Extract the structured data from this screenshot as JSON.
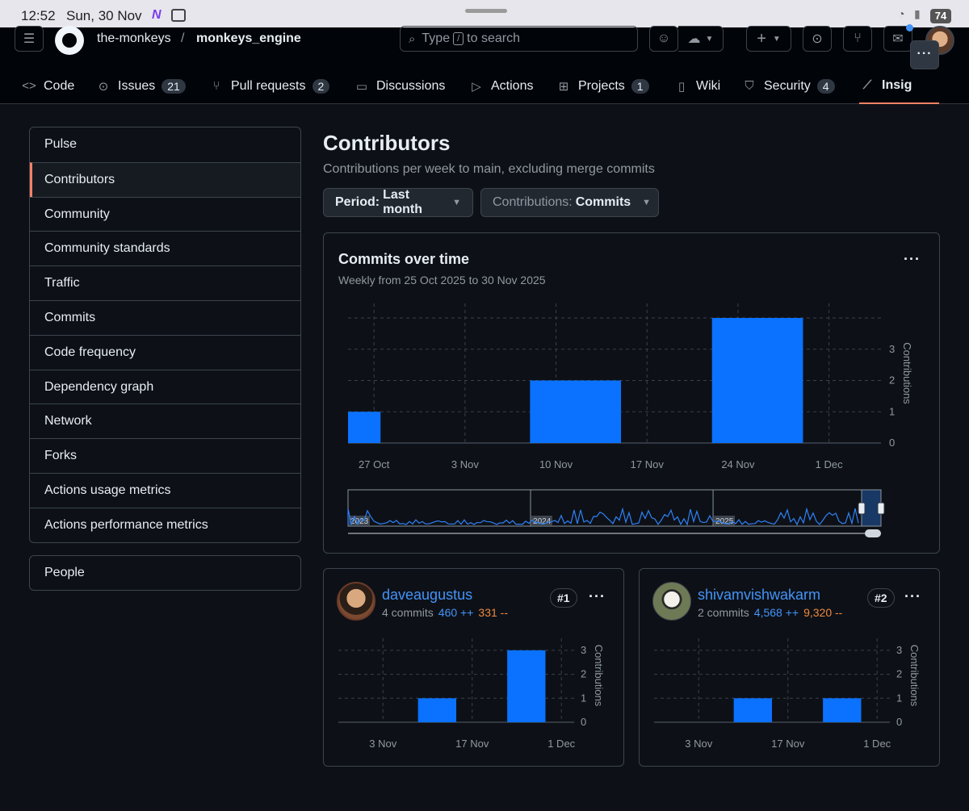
{
  "status_bar": {
    "time": "12:52",
    "date": "Sun, 30 Nov",
    "battery": "74"
  },
  "header": {
    "owner": "the-monkeys",
    "separator": "/",
    "repo": "monkeys_engine",
    "search_placeholder_pre": "Type",
    "search_kbd": "/",
    "search_placeholder_post": "to search"
  },
  "tabs": [
    {
      "label": "Code",
      "icon": "code-icon"
    },
    {
      "label": "Issues",
      "count": "21",
      "icon": "issue-icon"
    },
    {
      "label": "Pull requests",
      "count": "2",
      "icon": "pull-request-icon"
    },
    {
      "label": "Discussions",
      "icon": "discussion-icon"
    },
    {
      "label": "Actions",
      "icon": "play-icon"
    },
    {
      "label": "Projects",
      "count": "1",
      "icon": "table-icon"
    },
    {
      "label": "Wiki",
      "icon": "book-icon"
    },
    {
      "label": "Security",
      "count": "4",
      "icon": "shield-icon"
    },
    {
      "label": "Insig",
      "icon": "graph-icon"
    }
  ],
  "sidebar": {
    "items": [
      "Pulse",
      "Contributors",
      "Community",
      "Community standards",
      "Traffic",
      "Commits",
      "Code frequency",
      "Dependency graph",
      "Network",
      "Forks",
      "Actions usage metrics",
      "Actions performance metrics"
    ],
    "selected": "Contributors",
    "people": "People"
  },
  "main": {
    "title": "Contributors",
    "subtitle": "Contributions per week to main, excluding merge commits",
    "period": {
      "label": "Period:",
      "value": "Last month"
    },
    "contributions": {
      "label": "Contributions:",
      "value": "Commits"
    }
  },
  "overview": {
    "title": "Commits over time",
    "subtitle": "Weekly from 25 Oct 2025 to 30 Nov 2025",
    "axis_label": "Contributions",
    "yticks": [
      "0",
      "1",
      "2",
      "3"
    ],
    "xticks": [
      "27 Oct",
      "3 Nov",
      "10 Nov",
      "17 Nov",
      "24 Nov",
      "1 Dec"
    ],
    "navigator_years": [
      "2023",
      "2024",
      "2025"
    ]
  },
  "contributors": [
    {
      "name": "daveaugustus",
      "commits": "4 commits",
      "additions": "460 ++",
      "deletions": "331 --",
      "rank": "#1"
    },
    {
      "name": "shivamvishwakarm",
      "commits": "2 commits",
      "additions": "4,568 ++",
      "deletions": "9,320 --",
      "rank": "#2"
    }
  ],
  "mini_axes": {
    "axis_label": "Contributions",
    "yticks": [
      "0",
      "1",
      "2",
      "3"
    ],
    "xticks": [
      "3 Nov",
      "17 Nov",
      "1 Dec"
    ]
  },
  "chart_data": [
    {
      "type": "bar",
      "title": "Commits over time",
      "subtitle": "Weekly from 25 Oct 2025 to 30 Nov 2025",
      "ylabel": "Contributions",
      "x": [
        "2025-10-25",
        "2025-11-08",
        "2025-11-22"
      ],
      "values": [
        1,
        2,
        4
      ],
      "xticks": [
        "27 Oct",
        "3 Nov",
        "10 Nov",
        "17 Nov",
        "24 Nov",
        "1 Dec"
      ],
      "ylim": [
        0,
        4
      ],
      "grid": true
    },
    {
      "type": "bar",
      "title": "",
      "series": [
        {
          "name": "daveaugustus",
          "x": [
            "2025-11-08",
            "2025-11-22"
          ],
          "values": [
            1,
            3
          ]
        }
      ],
      "ylabel": "Contributions",
      "xticks": [
        "3 Nov",
        "17 Nov",
        "1 Dec"
      ],
      "ylim": [
        0,
        3.5
      ],
      "grid": true
    },
    {
      "type": "bar",
      "title": "",
      "series": [
        {
          "name": "shivamvishwakarm",
          "x": [
            "2025-11-08",
            "2025-11-22"
          ],
          "values": [
            1,
            1
          ]
        }
      ],
      "ylabel": "Contributions",
      "xticks": [
        "3 Nov",
        "17 Nov",
        "1 Dec"
      ],
      "ylim": [
        0,
        3.5
      ],
      "grid": true
    }
  ],
  "colors": {
    "bar": "#0b72ff",
    "accent": "#f78166",
    "link": "#4493f8",
    "deletions": "#f0883e"
  }
}
